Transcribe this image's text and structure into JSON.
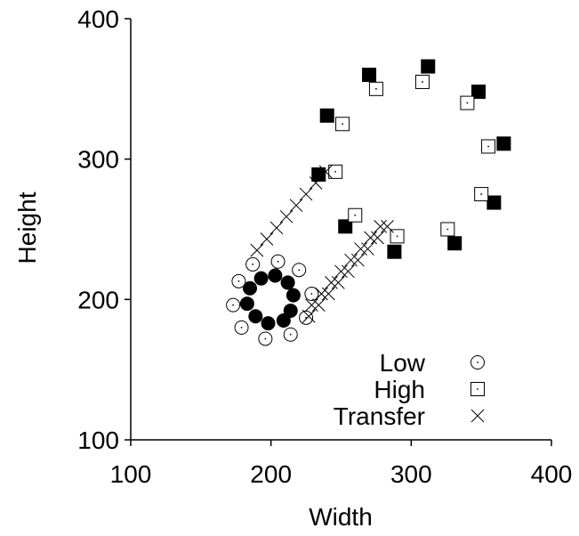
{
  "chart_data": {
    "type": "scatter",
    "title": "",
    "xlabel": "Width",
    "ylabel": "Height",
    "xlim": [
      100,
      400
    ],
    "ylim": [
      100,
      400
    ],
    "x_ticks": [
      "100",
      "200",
      "300",
      "400"
    ],
    "y_ticks": [
      "100",
      "200",
      "300",
      "400"
    ],
    "grid": false,
    "legend_position": "bottom-right",
    "legend": [
      {
        "label": "Low",
        "marker": "circle-dot"
      },
      {
        "label": "High",
        "marker": "square-dot"
      },
      {
        "label": "Transfer",
        "marker": "x"
      }
    ],
    "series": [
      {
        "name": "Low",
        "marker": "circle-dot",
        "points": [
          [
            187,
            225
          ],
          [
            205,
            227
          ],
          [
            229,
            204
          ],
          [
            225,
            187
          ],
          [
            214,
            175
          ],
          [
            196,
            172
          ],
          [
            179,
            180
          ],
          [
            173,
            196
          ],
          [
            177,
            213
          ],
          [
            220,
            221
          ]
        ]
      },
      {
        "name": "Low (filled)",
        "marker": "circle-filled",
        "points": [
          [
            193,
            215
          ],
          [
            203,
            217
          ],
          [
            212,
            212
          ],
          [
            216,
            203
          ],
          [
            214,
            192
          ],
          [
            209,
            185
          ],
          [
            198,
            183
          ],
          [
            189,
            188
          ],
          [
            183,
            197
          ],
          [
            185,
            208
          ]
        ]
      },
      {
        "name": "High",
        "marker": "square-dot",
        "points": [
          [
            246,
            291
          ],
          [
            251,
            325
          ],
          [
            275,
            350
          ],
          [
            308,
            355
          ],
          [
            340,
            340
          ],
          [
            355,
            309
          ],
          [
            350,
            275
          ],
          [
            326,
            250
          ],
          [
            290,
            245
          ],
          [
            260,
            260
          ]
        ]
      },
      {
        "name": "High (filled)",
        "marker": "square-filled",
        "points": [
          [
            234,
            289
          ],
          [
            240,
            331
          ],
          [
            270,
            360
          ],
          [
            312,
            366
          ],
          [
            348,
            348
          ],
          [
            366,
            311
          ],
          [
            359,
            269
          ],
          [
            331,
            240
          ],
          [
            288,
            234
          ],
          [
            253,
            252
          ]
        ]
      },
      {
        "name": "Transfer",
        "marker": "x",
        "points": [
          [
            190,
            235
          ],
          [
            197,
            243
          ],
          [
            204,
            251
          ],
          [
            211,
            259
          ],
          [
            218,
            267
          ],
          [
            225,
            275
          ],
          [
            232,
            283
          ],
          [
            239,
            291
          ],
          [
            229,
            196
          ],
          [
            236,
            204
          ],
          [
            243,
            212
          ],
          [
            250,
            220
          ],
          [
            257,
            228
          ],
          [
            264,
            236
          ],
          [
            271,
            244
          ],
          [
            278,
            252
          ],
          [
            227,
            188
          ],
          [
            234,
            196
          ],
          [
            241,
            204
          ],
          [
            248,
            212
          ],
          [
            255,
            220
          ],
          [
            262,
            228
          ],
          [
            269,
            236
          ],
          [
            276,
            244
          ],
          [
            283,
            252
          ]
        ]
      }
    ]
  }
}
